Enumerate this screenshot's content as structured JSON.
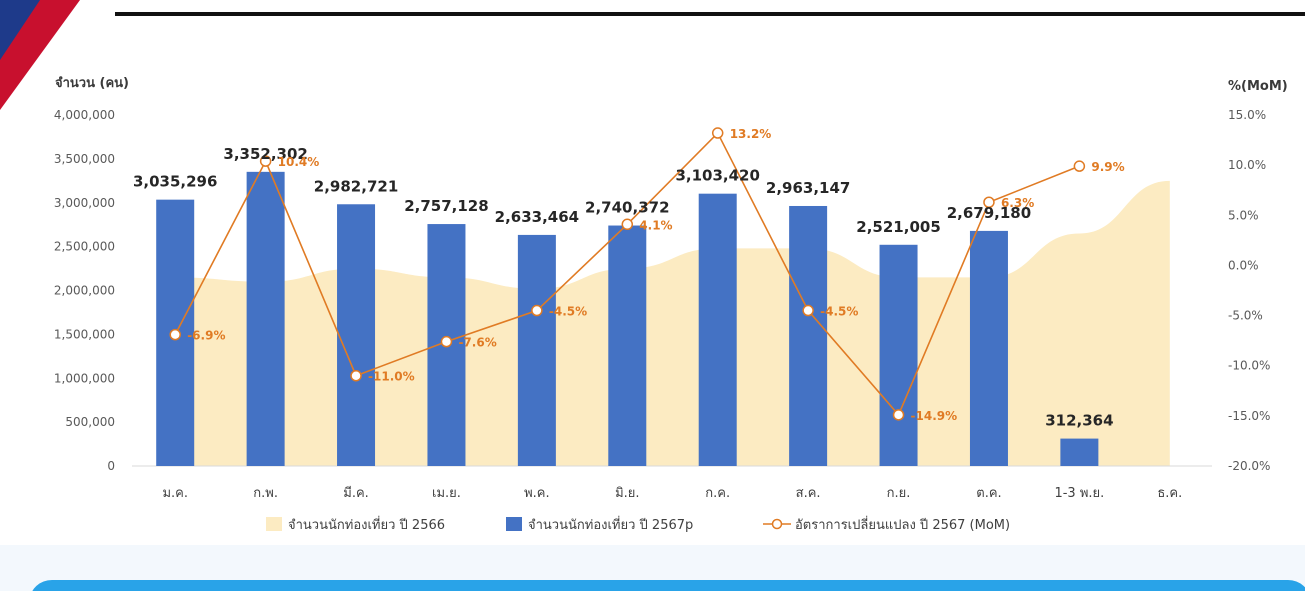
{
  "chart_data": {
    "type": "bar",
    "categories": [
      "ม.ค.",
      "ก.พ.",
      "มี.ค.",
      "เม.ย.",
      "พ.ค.",
      "มิ.ย.",
      "ก.ค.",
      "ส.ค.",
      "ก.ย.",
      "ต.ค.",
      "1-3 พ.ย.",
      "ธ.ค."
    ],
    "ylabel_left": "จำนวน (คน)",
    "ylabel_right": "%(MoM)",
    "ylim_left": [
      0,
      4000000
    ],
    "ylim_right": [
      -20,
      15
    ],
    "left_ticks": [
      "0",
      "500,000",
      "1,000,000",
      "1,500,000",
      "2,000,000",
      "2,500,000",
      "3,000,000",
      "3,500,000",
      "4,000,000"
    ],
    "right_ticks": [
      "-20.0%",
      "-15.0%",
      "-10.0%",
      "-5.0%",
      "0.0%",
      "5.0%",
      "10.0%",
      "15.0%"
    ],
    "series": [
      {
        "name": "จำนวนนักท่องเที่ยว ปี 2566",
        "type": "area",
        "color": "#FCEBC2",
        "values": [
          2150000,
          2100000,
          2250000,
          2150000,
          2020000,
          2250000,
          2480000,
          2480000,
          2150000,
          2150000,
          2650000,
          3250000
        ]
      },
      {
        "name": "จำนวนนักท่องเที่ยว ปี 2567p",
        "type": "bar",
        "color": "#4472C4",
        "values": [
          3035296,
          3352302,
          2982721,
          2757128,
          2633464,
          2740372,
          3103420,
          2963147,
          2521005,
          2679180,
          312364,
          null
        ],
        "labels": [
          "3,035,296",
          "3,352,302",
          "2,982,721",
          "2,757,128",
          "2,633,464",
          "2,740,372",
          "3,103,420",
          "2,963,147",
          "2,521,005",
          "2,679,180",
          "312,364",
          ""
        ]
      },
      {
        "name": "อัตราการเปลี่ยนแปลง ปี 2567 (MoM)",
        "type": "line",
        "axis": "right",
        "color": "#E07B24",
        "values": [
          -6.9,
          10.4,
          -11.0,
          -7.6,
          -4.5,
          4.1,
          13.2,
          -4.5,
          -14.9,
          6.3,
          9.9,
          null
        ],
        "labels": [
          "-6.9%",
          "10.4%",
          "-11.0%",
          "-7.6%",
          "-4.5%",
          "4.1%",
          "13.2%",
          "-4.5%",
          "-14.9%",
          "6.3%",
          "9.9%",
          ""
        ]
      }
    ],
    "grid": false,
    "legend_position": "bottom"
  }
}
